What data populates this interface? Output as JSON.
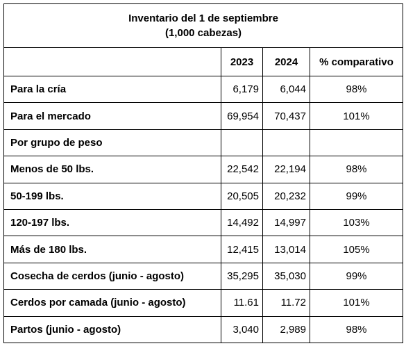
{
  "table": {
    "title": [
      "Inventario del 1 de septiembre",
      "(1,000 cabezas)"
    ],
    "header": [
      "2023",
      "2024",
      "% comparativo"
    ],
    "rows": [
      {
        "label": "Para la cría",
        "values": [
          "6,179",
          "6,044",
          "98%"
        ]
      },
      {
        "label": "Para el mercado",
        "values": [
          "69,954",
          "70,437",
          "101%"
        ]
      },
      {
        "label": "Por grupo de peso",
        "values": []
      },
      {
        "label": "Menos de 50 lbs.",
        "values": [
          "22,542",
          "22,194",
          "98%"
        ]
      },
      {
        "label": "50-199 lbs.",
        "values": [
          "20,505",
          "20,232",
          "99%"
        ]
      },
      {
        "label": "120-197 lbs.",
        "values": [
          "14,492",
          "14,997",
          "103%"
        ]
      },
      {
        "label": "Más de 180 lbs.",
        "values": [
          "12,415",
          "13,014",
          "105%"
        ]
      },
      {
        "label": "Cosecha de cerdos (junio - agosto)",
        "values": [
          "35,295",
          "35,030",
          "99%"
        ]
      },
      {
        "label": "Cerdos por camada (junio - agosto)",
        "values": [
          "11.61",
          "11.72",
          "101%"
        ]
      },
      {
        "label": "Partos (junio - agosto)",
        "values": [
          "3,040",
          "2,989",
          "98%"
        ]
      }
    ]
  }
}
